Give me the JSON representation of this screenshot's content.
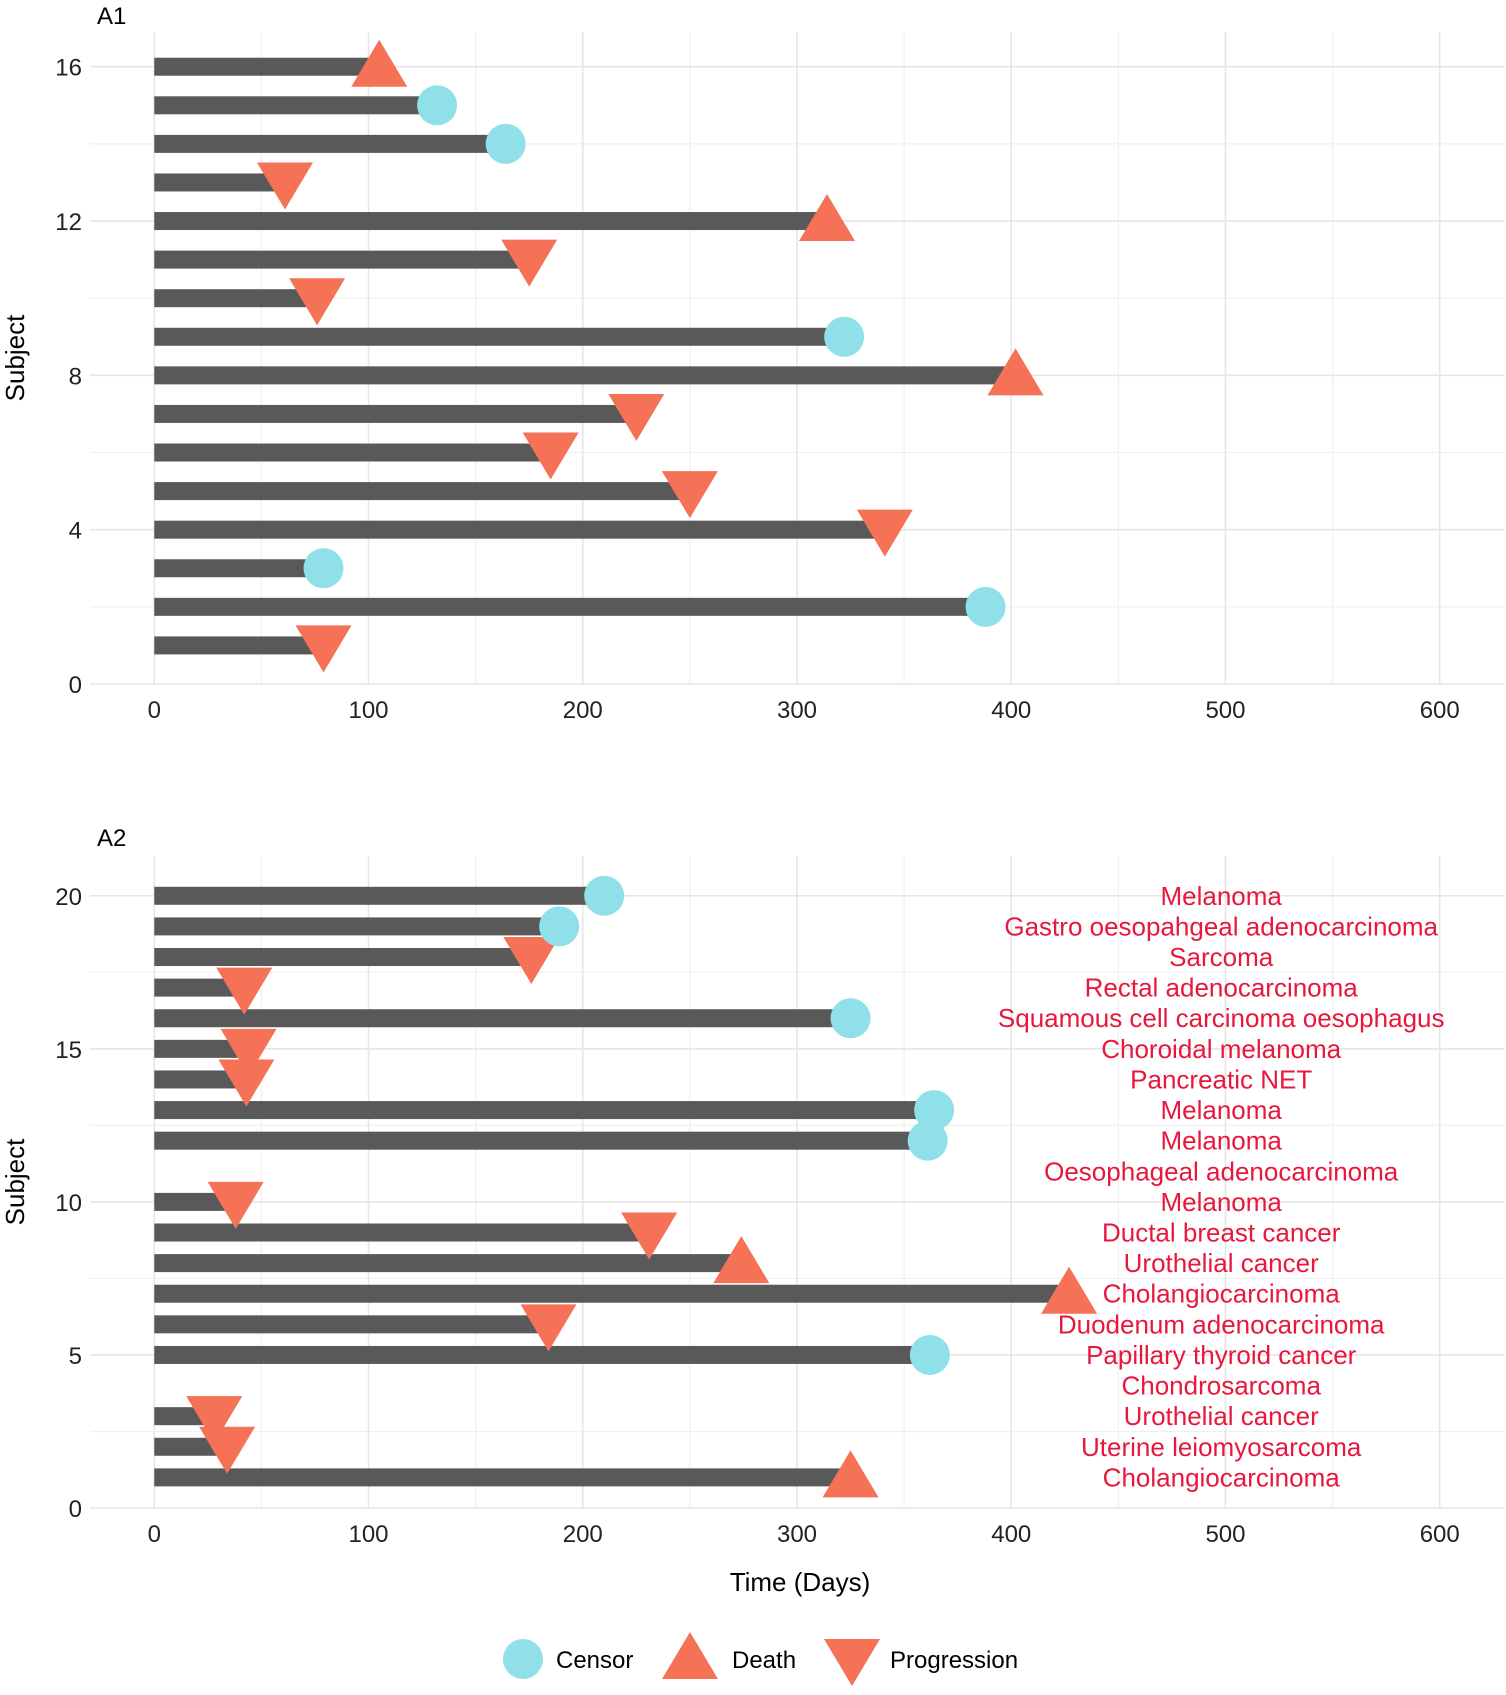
{
  "chart_data": [
    {
      "type": "swimmer",
      "panel": "A1",
      "xlabel": "",
      "ylabel": "Subject",
      "xlim": [
        -30,
        630
      ],
      "ylim": [
        0,
        16.9
      ],
      "xticks": [
        0,
        100,
        200,
        300,
        400,
        500,
        600
      ],
      "yticks": [
        0,
        4,
        8,
        12,
        16
      ],
      "subjects": [
        {
          "subject": 1,
          "time": 79,
          "event": "Progression"
        },
        {
          "subject": 2,
          "time": 388,
          "event": "Censor"
        },
        {
          "subject": 3,
          "time": 79,
          "event": "Censor"
        },
        {
          "subject": 4,
          "time": 341,
          "event": "Progression"
        },
        {
          "subject": 5,
          "time": 250,
          "event": "Progression"
        },
        {
          "subject": 6,
          "time": 185,
          "event": "Progression"
        },
        {
          "subject": 7,
          "time": 225,
          "event": "Progression"
        },
        {
          "subject": 8,
          "time": 402,
          "event": "Death"
        },
        {
          "subject": 9,
          "time": 322,
          "event": "Censor"
        },
        {
          "subject": 10,
          "time": 76,
          "event": "Progression"
        },
        {
          "subject": 11,
          "time": 175,
          "event": "Progression"
        },
        {
          "subject": 12,
          "time": 314,
          "event": "Death"
        },
        {
          "subject": 13,
          "time": 61,
          "event": "Progression"
        },
        {
          "subject": 14,
          "time": 164,
          "event": "Censor"
        },
        {
          "subject": 15,
          "time": 132,
          "event": "Censor"
        },
        {
          "subject": 16,
          "time": 105,
          "event": "Death"
        }
      ]
    },
    {
      "type": "swimmer",
      "panel": "A2",
      "xlabel": "Time (Days)",
      "ylabel": "Subject",
      "xlim": [
        -30,
        630
      ],
      "ylim": [
        0,
        21.3
      ],
      "xticks": [
        0,
        100,
        200,
        300,
        400,
        500,
        600
      ],
      "yticks": [
        0,
        5,
        10,
        15,
        20
      ],
      "subjects": [
        {
          "subject": 1,
          "time": 325,
          "event": "Death",
          "label": "Cholangiocarcinoma"
        },
        {
          "subject": 2,
          "time": 34,
          "event": "Progression",
          "label": "Uterine leiomyosarcoma"
        },
        {
          "subject": 3,
          "time": 28,
          "event": "Progression",
          "label": "Urothelial cancer"
        },
        {
          "subject": 4,
          "time": 0,
          "event": "",
          "label": "Chondrosarcoma"
        },
        {
          "subject": 5,
          "time": 362,
          "event": "Censor",
          "label": "Papillary thyroid cancer"
        },
        {
          "subject": 6,
          "time": 184,
          "event": "Progression",
          "label": "Duodenum adenocarcinoma"
        },
        {
          "subject": 7,
          "time": 427,
          "event": "Death",
          "label": "Cholangiocarcinoma"
        },
        {
          "subject": 8,
          "time": 274,
          "event": "Death",
          "label": "Urothelial cancer"
        },
        {
          "subject": 9,
          "time": 231,
          "event": "Progression",
          "label": "Ductal breast cancer"
        },
        {
          "subject": 10,
          "time": 38,
          "event": "Progression",
          "label": "Melanoma"
        },
        {
          "subject": 11,
          "time": 0,
          "event": "",
          "label": "Oesophageal adenocarcinoma"
        },
        {
          "subject": 12,
          "time": 361,
          "event": "Censor",
          "label": "Melanoma"
        },
        {
          "subject": 13,
          "time": 364,
          "event": "Censor",
          "label": "Melanoma"
        },
        {
          "subject": 14,
          "time": 43,
          "event": "Progression",
          "label": "Pancreatic NET"
        },
        {
          "subject": 15,
          "time": 44,
          "event": "Progression",
          "label": "Choroidal melanoma"
        },
        {
          "subject": 16,
          "time": 325,
          "event": "Censor",
          "label": "Squamous cell carcinoma oesophagus"
        },
        {
          "subject": 17,
          "time": 42,
          "event": "Progression",
          "label": "Rectal adenocarcinoma"
        },
        {
          "subject": 18,
          "time": 176,
          "event": "Progression",
          "label": "Sarcoma"
        },
        {
          "subject": 19,
          "time": 189,
          "event": "Censor",
          "label": "Gastro oesopahgeal adenocarcinoma"
        },
        {
          "subject": 20,
          "time": 210,
          "event": "Censor",
          "label": "Melanoma"
        }
      ]
    }
  ],
  "legend": [
    {
      "event": "Censor",
      "label": "Censor",
      "shape": "circle"
    },
    {
      "event": "Death",
      "label": "Death",
      "shape": "triangle-up"
    },
    {
      "event": "Progression",
      "label": "Progression",
      "shape": "triangle-down"
    }
  ],
  "colors": {
    "bar": "#595959",
    "Censor": "#8fe0e8",
    "Death": "#f57256",
    "Progression": "#f57256",
    "annotation": "#e8173d",
    "grid": "#e6e6e6"
  }
}
